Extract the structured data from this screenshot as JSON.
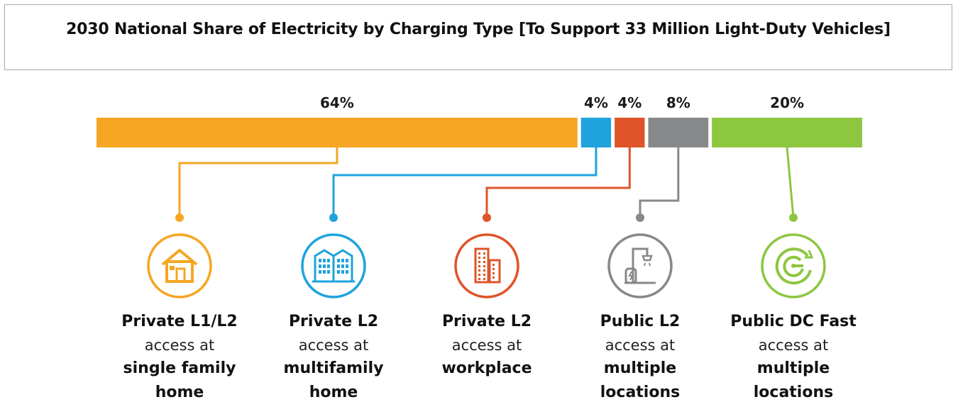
{
  "title": "2030 National Share of Electricity by Charging Type [To Support 33 Million Light-Duty Vehicles]",
  "chart_data": {
    "type": "bar",
    "orientation": "horizontal-stacked-100",
    "title": "2030 National Share of Electricity by Charging Type [To Support 33 Million Light-Duty Vehicles]",
    "unit": "%",
    "segments": [
      {
        "label": "64%",
        "value": 64,
        "color": "#f5a623",
        "icon": "house-icon",
        "name": "Private L1/L2",
        "mid": "access at",
        "location": "single family\nhome"
      },
      {
        "label": "4%",
        "value": 4,
        "color": "#1fa3dc",
        "icon": "apartment-building-icon",
        "name": "Private L2",
        "mid": "access at",
        "location": "multifamily\nhome"
      },
      {
        "label": "4%",
        "value": 4,
        "color": "#df5428",
        "icon": "office-building-icon",
        "name": "Private L2",
        "mid": "access at",
        "location": "workplace"
      },
      {
        "label": "8%",
        "value": 8,
        "color": "#87888a",
        "icon": "ev-charger-icon",
        "name": "Public L2",
        "mid": "access at",
        "location": "multiple\nlocations"
      },
      {
        "label": "20%",
        "value": 20,
        "color": "#8dc63f",
        "icon": "fast-charge-gauge-icon",
        "name": "Public DC Fast",
        "mid": "access at",
        "location": "multiple\nlocations"
      }
    ]
  }
}
